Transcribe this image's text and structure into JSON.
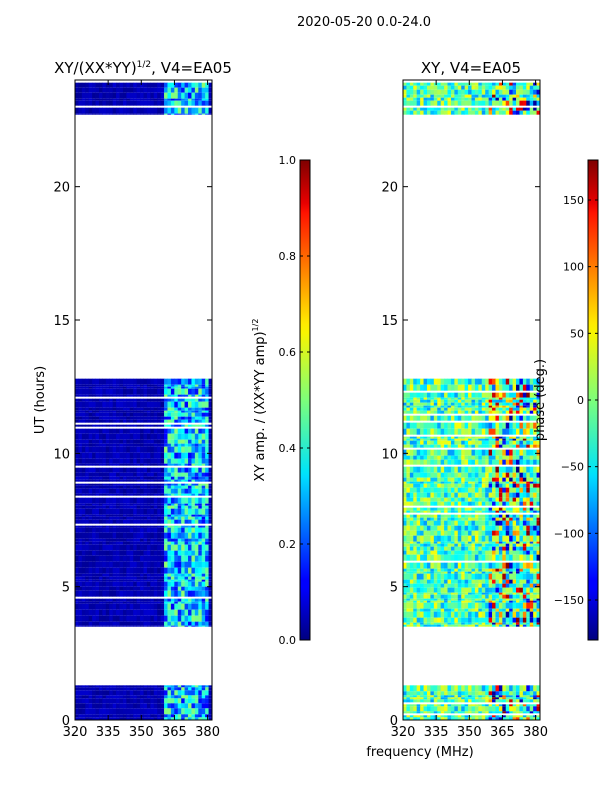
{
  "figure": {
    "suptitle": "2020-05-20 0.0-24.0",
    "xlabel": "frequency (MHz)"
  },
  "chart_data": [
    {
      "type": "heatmap",
      "title_main": "XY/(XX*YY)",
      "title_sup": "1/2",
      "title_rest": ", V4=EA05",
      "xlabel": "",
      "ylabel": "UT (hours)",
      "xlim": [
        320,
        382
      ],
      "ylim": [
        0,
        24
      ],
      "xticks": [
        320,
        335,
        350,
        365,
        380
      ],
      "yticks": [
        0,
        5,
        10,
        15,
        20
      ],
      "data_segments_hours": [
        [
          0.0,
          1.3
        ],
        [
          3.5,
          12.8
        ],
        [
          22.7,
          23.9
        ]
      ],
      "colorbar": {
        "label_main": "XY amp. / (XX*YY amp)",
        "label_sup": "1/2",
        "range": [
          0.0,
          1.0
        ],
        "ticks": [
          0.0,
          0.2,
          0.4,
          0.6,
          0.8,
          1.0
        ],
        "tick_labels": [
          "0.0",
          "0.2",
          "0.4",
          "0.6",
          "0.8",
          "1.0"
        ]
      }
    },
    {
      "type": "heatmap",
      "title_main": "XY, V4=EA05",
      "title_sup": "",
      "title_rest": "",
      "xlabel": "frequency (MHz)",
      "ylabel": "",
      "xlim": [
        320,
        382
      ],
      "ylim": [
        0,
        24
      ],
      "xticks": [
        320,
        335,
        350,
        365,
        380
      ],
      "yticks": [
        0,
        5,
        10,
        15,
        20
      ],
      "data_segments_hours": [
        [
          0.0,
          1.3
        ],
        [
          3.5,
          12.8
        ],
        [
          22.7,
          23.9
        ]
      ],
      "colorbar": {
        "label_main": "phase (deg.)",
        "label_sup": "",
        "range": [
          -180,
          180
        ],
        "ticks": [
          -150,
          -100,
          -50,
          0,
          50,
          100,
          150
        ],
        "tick_labels": [
          "−150",
          "−100",
          "−50",
          "0",
          "50",
          "100",
          "150"
        ]
      }
    }
  ]
}
